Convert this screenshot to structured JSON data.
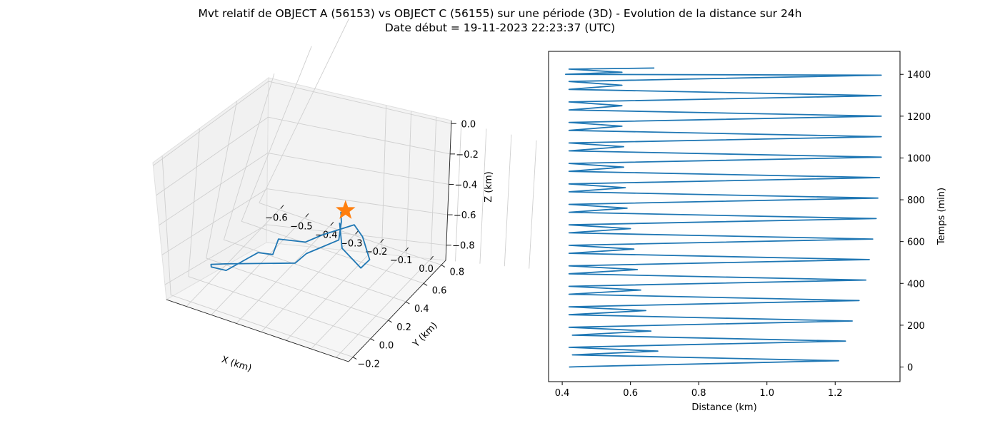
{
  "figure": {
    "title_line1": "Mvt relatif de OBJECT A (56153) vs OBJECT C (56155) sur une période (3D) - Evolution de la distance sur 24h",
    "title_line2": "Date début = 19-11-2023 22:23:37 (UTC)"
  },
  "colors": {
    "series": "#1f77b4",
    "marker": "#ff7f0e",
    "pane": "#f2f2f2",
    "grid": "#cccccc"
  },
  "chart_data": [
    {
      "type": "line",
      "projection": "3d",
      "title": "",
      "xlabel": "X (km)",
      "ylabel": "Y (km)",
      "zlabel": "Z (km)",
      "xlim": [
        -0.68,
        0.05
      ],
      "ylim": [
        -0.25,
        0.85
      ],
      "zlim": [
        -0.9,
        0.02
      ],
      "xticks": [
        "−0.6",
        "−0.5",
        "−0.4",
        "−0.3",
        "−0.2",
        "−0.1",
        "0.0"
      ],
      "yticks": [
        "−0.2",
        "0.0",
        "0.2",
        "0.4",
        "0.6",
        "0.8"
      ],
      "zticks": [
        "0.0",
        "−0.2",
        "−0.4",
        "−0.6",
        "−0.8"
      ],
      "grid": true,
      "series": [
        {
          "x": [
            -0.02,
            -0.03,
            -0.06,
            -0.22,
            -0.31,
            -0.62,
            -0.64,
            -0.6,
            -0.52,
            -0.45,
            -0.38,
            -0.3,
            -0.25,
            -0.1,
            -0.02,
            0.05,
            0.02,
            0.0,
            -0.02,
            -0.05,
            -0.03
          ],
          "y": [
            0.0,
            0.02,
            0.05,
            0.1,
            0.2,
            0.25,
            0.15,
            0.05,
            0.0,
            0.05,
            0.0,
            -0.05,
            -0.1,
            -0.2,
            -0.22,
            -0.05,
            0.1,
            0.2,
            0.15,
            0.05,
            0.0
          ],
          "z": [
            -0.02,
            -0.1,
            -0.25,
            -0.45,
            -0.6,
            -0.8,
            -0.78,
            -0.74,
            -0.7,
            -0.6,
            -0.5,
            -0.45,
            -0.3,
            -0.2,
            -0.1,
            -0.05,
            -0.2,
            -0.4,
            -0.45,
            -0.3,
            -0.1
          ]
        }
      ],
      "marker": {
        "shape": "star",
        "x": 0,
        "y": 0,
        "z": 0
      }
    },
    {
      "type": "line",
      "title": "",
      "xlabel": "Distance (km)",
      "ylabel": "Temps (min)",
      "xlim": [
        0.36,
        1.39
      ],
      "ylim": [
        -70,
        1510
      ],
      "xticks": [
        0.4,
        0.6,
        0.8,
        1.0,
        1.2
      ],
      "yticks": [
        0,
        200,
        400,
        600,
        800,
        1000,
        1200,
        1400
      ],
      "yaxis_side": "right",
      "grid": false,
      "series": [
        {
          "x": [
            0.42,
            0.46,
            1.21,
            0.43,
            0.68,
            0.42,
            1.23,
            0.43,
            0.66,
            0.42,
            1.25,
            0.42,
            0.645,
            0.42,
            1.27,
            0.42,
            0.63,
            0.42,
            1.29,
            0.42,
            0.62,
            0.42,
            1.3,
            0.42,
            0.61,
            0.42,
            1.31,
            0.42,
            0.6,
            0.42,
            1.32,
            0.42,
            0.59,
            0.42,
            1.325,
            0.42,
            0.585,
            0.42,
            1.33,
            0.42,
            0.58,
            0.42,
            1.335,
            0.42,
            0.58,
            0.42,
            1.335,
            0.42,
            0.575,
            0.42,
            1.335,
            0.42,
            0.575,
            0.42,
            1.335,
            0.42,
            0.575,
            0.42,
            1.335,
            0.41,
            0.575,
            0.42,
            0.67
          ],
          "y": [
            0,
            2,
            30,
            58,
            76,
            94,
            124,
            152,
            172,
            190,
            220,
            250,
            270,
            288,
            318,
            348,
            368,
            386,
            416,
            446,
            466,
            484,
            514,
            544,
            564,
            582,
            612,
            642,
            662,
            680,
            710,
            740,
            760,
            778,
            808,
            838,
            858,
            876,
            906,
            936,
            956,
            974,
            1004,
            1034,
            1054,
            1072,
            1102,
            1132,
            1152,
            1170,
            1200,
            1230,
            1250,
            1268,
            1298,
            1328,
            1348,
            1366,
            1396,
            1400,
            1410,
            1425,
            1430
          ]
        }
      ]
    }
  ]
}
